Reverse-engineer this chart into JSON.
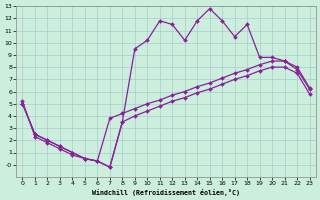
{
  "xlabel": "Windchill (Refroidissement éolien,°C)",
  "bg_color": "#cceedd",
  "line_color": "#882299",
  "grid_color": "#aacccc",
  "xlim": [
    -0.5,
    23.5
  ],
  "ylim": [
    -1,
    13
  ],
  "xticks": [
    0,
    1,
    2,
    3,
    4,
    5,
    6,
    7,
    8,
    9,
    10,
    11,
    12,
    13,
    14,
    15,
    16,
    17,
    18,
    19,
    20,
    21,
    22,
    23
  ],
  "yticks": [
    0,
    1,
    2,
    3,
    4,
    5,
    6,
    7,
    8,
    9,
    10,
    11,
    12,
    13
  ],
  "line1_x": [
    0,
    1,
    2,
    3,
    4,
    5,
    6,
    7,
    8,
    9,
    10,
    11,
    12,
    13,
    14,
    15,
    16,
    17,
    18,
    19,
    20,
    21,
    22,
    23
  ],
  "line1_y": [
    5.0,
    2.5,
    2.0,
    1.5,
    1.0,
    0.5,
    0.3,
    -0.2,
    3.5,
    9.5,
    10.2,
    11.8,
    11.5,
    10.2,
    11.8,
    12.8,
    11.8,
    10.5,
    11.5,
    8.8,
    8.8,
    8.5,
    7.8,
    6.2
  ],
  "line2_x": [
    0,
    1,
    2,
    3,
    4,
    5,
    6,
    7,
    8,
    9,
    10,
    11,
    12,
    13,
    14,
    15,
    16,
    17,
    18,
    19,
    20,
    21,
    22,
    23
  ],
  "line2_y": [
    5.2,
    2.3,
    1.8,
    1.3,
    0.8,
    0.5,
    0.3,
    3.8,
    4.2,
    4.6,
    5.0,
    5.3,
    5.7,
    6.0,
    6.4,
    6.7,
    7.1,
    7.5,
    7.8,
    8.2,
    8.5,
    8.5,
    8.0,
    6.3
  ],
  "line3_x": [
    0,
    1,
    2,
    3,
    4,
    5,
    6,
    7,
    8,
    9,
    10,
    11,
    12,
    13,
    14,
    15,
    16,
    17,
    18,
    19,
    20,
    21,
    22,
    23
  ],
  "line3_y": [
    5.0,
    2.5,
    2.0,
    1.5,
    1.0,
    0.5,
    0.3,
    -0.2,
    3.5,
    4.0,
    4.4,
    4.8,
    5.2,
    5.5,
    5.9,
    6.2,
    6.6,
    7.0,
    7.3,
    7.7,
    8.0,
    8.0,
    7.5,
    5.8
  ]
}
